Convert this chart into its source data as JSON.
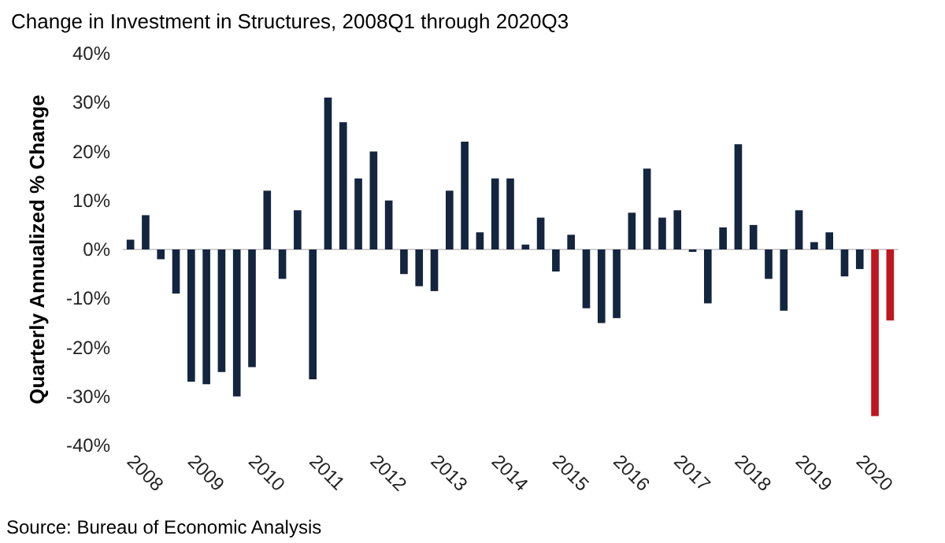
{
  "chart_data": {
    "type": "bar",
    "title": "Change in Investment in Structures, 2008Q1 through 2020Q3",
    "ylabel": "Quarterly Annualized % Change",
    "annotations": [
      "Source: Bureau of Economic Analysis"
    ],
    "categories": [
      "2008",
      null,
      null,
      null,
      "2009",
      null,
      null,
      null,
      "2010",
      null,
      null,
      null,
      "2011",
      null,
      null,
      null,
      "2012",
      null,
      null,
      null,
      "2013",
      null,
      null,
      null,
      "2014",
      null,
      null,
      null,
      "2015",
      null,
      null,
      null,
      "2016",
      null,
      null,
      null,
      "2017",
      null,
      null,
      null,
      "2018",
      null,
      null,
      null,
      "2019",
      null,
      null,
      null,
      "2020",
      null,
      null
    ],
    "values": [
      2,
      7,
      -2,
      -9,
      -27,
      -27.5,
      -25,
      -30,
      -24,
      12,
      -6,
      8,
      -26.5,
      31,
      26,
      14.5,
      20,
      10,
      -5,
      -7.5,
      -8.5,
      12,
      22,
      3.5,
      14.5,
      14.5,
      1,
      6.5,
      -4.5,
      3,
      -12,
      -15,
      -14,
      7.5,
      16.5,
      6.5,
      8,
      -0.5,
      -11,
      4.5,
      21.5,
      5,
      -6,
      -12.5,
      8,
      1.5,
      3.5,
      -5.5,
      -4,
      -34,
      -14.5
    ],
    "colors": [
      "#14253f",
      "#14253f",
      "#14253f",
      "#14253f",
      "#14253f",
      "#14253f",
      "#14253f",
      "#14253f",
      "#14253f",
      "#14253f",
      "#14253f",
      "#14253f",
      "#14253f",
      "#14253f",
      "#14253f",
      "#14253f",
      "#14253f",
      "#14253f",
      "#14253f",
      "#14253f",
      "#14253f",
      "#14253f",
      "#14253f",
      "#14253f",
      "#14253f",
      "#14253f",
      "#14253f",
      "#14253f",
      "#14253f",
      "#14253f",
      "#14253f",
      "#14253f",
      "#14253f",
      "#14253f",
      "#14253f",
      "#14253f",
      "#14253f",
      "#14253f",
      "#14253f",
      "#14253f",
      "#14253f",
      "#14253f",
      "#14253f",
      "#14253f",
      "#14253f",
      "#14253f",
      "#14253f",
      "#14253f",
      "#14253f",
      "#c0161f",
      "#c0161f"
    ],
    "ylim": [
      -40,
      40
    ],
    "yticks": [
      {
        "value": -40,
        "label": "-40%"
      },
      {
        "value": -30,
        "label": "-30%"
      },
      {
        "value": -20,
        "label": "-20%"
      },
      {
        "value": -10,
        "label": "-10%"
      },
      {
        "value": 0,
        "label": "0%"
      },
      {
        "value": 10,
        "label": "10%"
      },
      {
        "value": 20,
        "label": "20%"
      },
      {
        "value": 30,
        "label": "30%"
      },
      {
        "value": 40,
        "label": "40%"
      }
    ],
    "data_labels": false
  }
}
